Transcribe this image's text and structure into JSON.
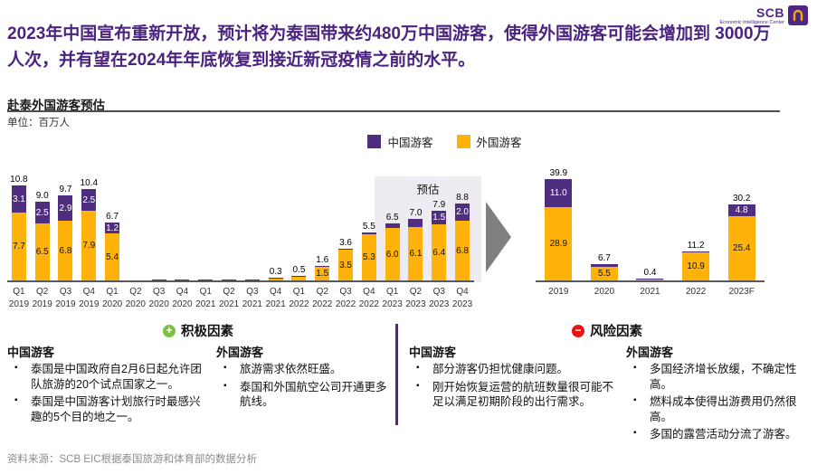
{
  "brand": {
    "logo_text": "SCB",
    "logo_subtext": "Economic Intelligence Center",
    "colors": {
      "purple": "#4F2683",
      "gold": "#F5A800"
    }
  },
  "headline": "2023年中国宣布重新开放，预计将为泰国带来约480万中国游客，使得外国游客可能会增加到 3000万人次，并有望在2024年年底恢复到接近新冠疫情之前的水平。",
  "chart_section": {
    "title": "赴泰外国游客预估",
    "unit_label": "单位：百万人",
    "forecast_label": "预估",
    "legend": [
      {
        "label": "中国游客",
        "color": "#4F2D7F"
      },
      {
        "label": "外国游客",
        "color": "#FFB30A"
      }
    ]
  },
  "chart_data": [
    {
      "type": "bar",
      "id": "quarterly",
      "subtype": "stacked",
      "series_names": [
        "中国游客",
        "外国游客"
      ],
      "ylim": [
        0,
        12
      ],
      "forecast_from_index": 16,
      "bars": [
        {
          "x": [
            "Q1",
            "2019"
          ],
          "china": 3.1,
          "foreign": 7.7,
          "total": 10.8,
          "show": {
            "total": "10.8",
            "china": "3.1",
            "foreign": "7.7"
          }
        },
        {
          "x": [
            "Q2",
            "2019"
          ],
          "china": 2.5,
          "foreign": 6.5,
          "total": 9.0,
          "show": {
            "total": "9.0",
            "china": "2.5",
            "foreign": "6.5"
          }
        },
        {
          "x": [
            "Q3",
            "2019"
          ],
          "china": 2.9,
          "foreign": 6.8,
          "total": 9.7,
          "show": {
            "total": "9.7",
            "china": "2.9",
            "foreign": "6.8"
          }
        },
        {
          "x": [
            "Q4",
            "2019"
          ],
          "china": 2.5,
          "foreign": 7.9,
          "total": 10.4,
          "show": {
            "total": "10.4",
            "china": "2.5",
            "foreign": "7.9"
          }
        },
        {
          "x": [
            "Q1",
            "2020"
          ],
          "china": 1.2,
          "foreign": 5.4,
          "total": 6.7,
          "show": {
            "total": "6.7",
            "china": "1.2",
            "foreign": "5.4"
          }
        },
        {
          "x": [
            "Q2",
            "2020"
          ],
          "china": 0,
          "foreign": 0,
          "total": 0,
          "show": {}
        },
        {
          "x": [
            "Q3",
            "2020"
          ],
          "china": 0.1,
          "foreign": 0,
          "total": 0.1,
          "show": {}
        },
        {
          "x": [
            "Q4",
            "2020"
          ],
          "china": 0.1,
          "foreign": 0,
          "total": 0.1,
          "show": {}
        },
        {
          "x": [
            "Q1",
            "2021"
          ],
          "china": 0.1,
          "foreign": 0,
          "total": 0.1,
          "show": {}
        },
        {
          "x": [
            "Q2",
            "2021"
          ],
          "china": 0.1,
          "foreign": 0,
          "total": 0.1,
          "show": {}
        },
        {
          "x": [
            "Q3",
            "2021"
          ],
          "china": 0.1,
          "foreign": 0,
          "total": 0.1,
          "show": {}
        },
        {
          "x": [
            "Q4",
            "2021"
          ],
          "china": 0.05,
          "foreign": 0.25,
          "total": 0.3,
          "show": {
            "total": "0.3"
          }
        },
        {
          "x": [
            "Q1",
            "2022"
          ],
          "china": 0.1,
          "foreign": 0.4,
          "total": 0.5,
          "show": {
            "total": "0.5"
          }
        },
        {
          "x": [
            "Q2",
            "2022"
          ],
          "china": 0.1,
          "foreign": 1.5,
          "total": 1.6,
          "show": {
            "total": "1.6",
            "foreign": "1.5"
          }
        },
        {
          "x": [
            "Q3",
            "2022"
          ],
          "china": 0.1,
          "foreign": 3.5,
          "total": 3.6,
          "show": {
            "total": "3.6",
            "foreign": "3.5"
          }
        },
        {
          "x": [
            "Q4",
            "2022"
          ],
          "china": 0.2,
          "foreign": 5.3,
          "total": 5.5,
          "show": {
            "total": "5.5",
            "foreign": "5.3"
          }
        },
        {
          "x": [
            "Q1",
            "2023"
          ],
          "china": 0.5,
          "foreign": 6.0,
          "total": 6.5,
          "show": {
            "total": "6.5",
            "foreign": "6.0"
          }
        },
        {
          "x": [
            "Q2",
            "2023"
          ],
          "china": 0.9,
          "foreign": 6.1,
          "total": 7.0,
          "show": {
            "total": "7.0",
            "foreign": "6.1"
          }
        },
        {
          "x": [
            "Q3",
            "2023"
          ],
          "china": 1.5,
          "foreign": 6.4,
          "total": 7.9,
          "show": {
            "total": "7.9",
            "china": "1.5",
            "foreign": "6.4"
          }
        },
        {
          "x": [
            "Q4",
            "2023"
          ],
          "china": 2.0,
          "foreign": 6.8,
          "total": 8.8,
          "show": {
            "total": "8.8",
            "china": "2.0",
            "foreign": "6.8"
          }
        }
      ]
    },
    {
      "type": "bar",
      "id": "annual",
      "subtype": "stacked",
      "series_names": [
        "中国游客",
        "外国游客"
      ],
      "ylim": [
        0,
        42
      ],
      "bars": [
        {
          "x": [
            "2019"
          ],
          "china": 11.0,
          "foreign": 28.9,
          "total": 39.9,
          "show": {
            "total": "39.9",
            "china": "11.0",
            "foreign": "28.9"
          }
        },
        {
          "x": [
            "2020"
          ],
          "china": 1.2,
          "foreign": 5.5,
          "total": 6.7,
          "show": {
            "total": "6.7",
            "foreign": "5.5"
          }
        },
        {
          "x": [
            "2021"
          ],
          "china": 0.05,
          "foreign": 0.35,
          "total": 0.4,
          "show": {
            "total": "0.4"
          }
        },
        {
          "x": [
            "2022"
          ],
          "china": 0.3,
          "foreign": 10.9,
          "total": 11.2,
          "show": {
            "total": "11.2",
            "foreign": "10.9"
          }
        },
        {
          "x": [
            "2023F"
          ],
          "china": 4.8,
          "foreign": 25.4,
          "total": 30.2,
          "show": {
            "total": "30.2",
            "china": "4.8",
            "foreign": "25.4"
          }
        }
      ]
    }
  ],
  "factors": {
    "positive": {
      "heading": "积极因素",
      "icon": "plus-circle-icon",
      "icon_color": "#7DC242",
      "columns": [
        {
          "heading": "中国游客",
          "bullets": [
            "泰国是中国政府自2月6日起允许团队旅游的20个试点国家之一。",
            "泰国是中国游客计划旅行时最感兴趣的5个目的地之一。"
          ]
        },
        {
          "heading": "外国游客",
          "bullets": [
            "旅游需求依然旺盛。",
            "泰国和外国航空公司开通更多航线。"
          ]
        }
      ]
    },
    "risk": {
      "heading": "风险因素",
      "icon": "minus-circle-icon",
      "icon_color": "#EE1111",
      "columns": [
        {
          "heading": "中国游客",
          "bullets": [
            "部分游客仍担忧健康问题。",
            "刚开始恢复运营的航班数量很可能不足以满足初期阶段的出行需求。"
          ]
        },
        {
          "heading": "外国游客",
          "bullets": [
            "多国经济增长放缓，不确定性高。",
            "燃料成本使得出游费用仍然很高。",
            "多国的露营活动分流了游客。"
          ]
        }
      ]
    }
  },
  "source": "资料来源：SCB EIC根据泰国旅游和体育部的数据分析"
}
